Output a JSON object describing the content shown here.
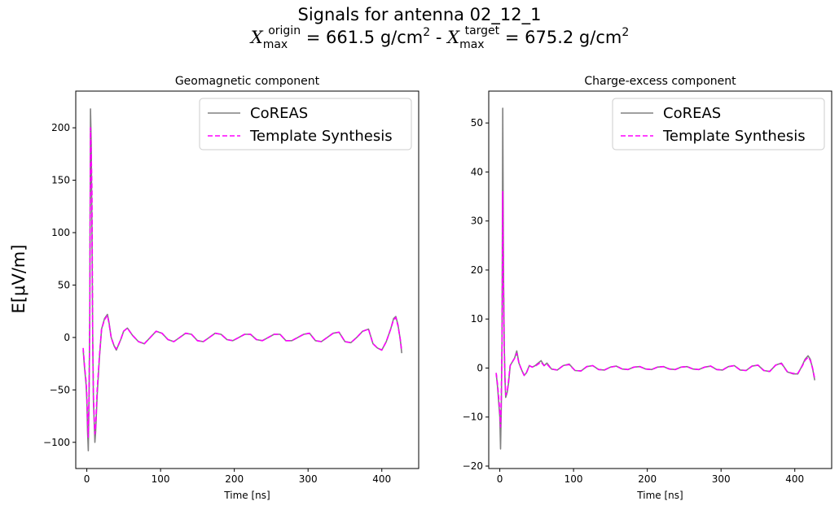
{
  "figure": {
    "title_line1": "Signals for antenna 02_12_1",
    "xmax_symbol": "X",
    "xmax_sub": "max",
    "origin_sup": "origin",
    "target_sup": "target",
    "origin_value": "=  661.5 g/cm",
    "target_value": "=  675.2 g/cm",
    "sq": "2",
    "separator": " -  ",
    "ylabel": "E[μV/m]"
  },
  "colors": {
    "coreas": "#808080",
    "template": "#ff00ff"
  },
  "chart_data": [
    {
      "type": "line",
      "title": "Geomagnetic component",
      "xlabel": "Time [ns]",
      "ylabel": "E[μV/m]",
      "xlim": [
        -15,
        450
      ],
      "ylim": [
        -125,
        235
      ],
      "xticks": [
        0,
        100,
        200,
        300,
        400
      ],
      "yticks": [
        -100,
        -50,
        0,
        50,
        100,
        150,
        200
      ],
      "legend": {
        "position": "top-right",
        "entries": [
          "CoREAS",
          "Template Synthesis"
        ]
      },
      "series": [
        {
          "name": "CoREAS",
          "style": "solid",
          "color": "#808080",
          "x": [
            -5,
            -3,
            -1,
            0,
            1,
            2,
            3,
            4,
            5,
            6,
            7,
            8,
            9,
            10,
            11,
            12,
            14,
            17,
            20,
            24,
            28,
            30,
            33,
            37,
            40,
            43,
            46,
            50,
            55,
            62,
            70,
            78,
            86,
            94,
            102,
            110,
            118,
            126,
            134,
            142,
            150,
            158,
            166,
            174,
            182,
            190,
            198,
            206,
            214,
            222,
            230,
            238,
            246,
            254,
            262,
            270,
            278,
            286,
            294,
            302,
            310,
            318,
            326,
            334,
            342,
            350,
            358,
            366,
            374,
            382,
            388,
            394,
            400,
            406,
            412,
            416,
            419,
            422,
            425,
            427
          ],
          "y": [
            -12,
            -30,
            -45,
            -60,
            -90,
            -108,
            -60,
            20,
            218,
            185,
            100,
            0,
            -60,
            -80,
            -100,
            -90,
            -55,
            -20,
            8,
            18,
            22,
            15,
            0,
            -8,
            -12,
            -7,
            -2,
            6,
            9,
            2,
            -4,
            -6,
            0,
            6,
            4,
            -2,
            -4,
            0,
            4,
            3,
            -3,
            -4,
            0,
            4,
            3,
            -2,
            -3,
            0,
            3,
            3,
            -2,
            -3,
            0,
            3,
            3,
            -3,
            -3,
            0,
            3,
            4,
            -3,
            -4,
            0,
            4,
            5,
            -4,
            -5,
            0,
            6,
            8,
            -6,
            -10,
            -12,
            -4,
            8,
            18,
            20,
            12,
            -2,
            -15
          ]
        },
        {
          "name": "Template Synthesis",
          "style": "dashed",
          "color": "#ff00ff",
          "x": [
            -5,
            -3,
            -1,
            0,
            1,
            2,
            3,
            4,
            5,
            6,
            7,
            8,
            9,
            10,
            11,
            12,
            14,
            17,
            20,
            24,
            28,
            30,
            33,
            37,
            40,
            43,
            46,
            50,
            55,
            62,
            70,
            78,
            86,
            94,
            102,
            110,
            118,
            126,
            134,
            142,
            150,
            158,
            166,
            174,
            182,
            190,
            198,
            206,
            214,
            222,
            230,
            238,
            246,
            254,
            262,
            270,
            278,
            286,
            294,
            302,
            310,
            318,
            326,
            334,
            342,
            350,
            358,
            366,
            374,
            382,
            388,
            394,
            400,
            406,
            412,
            416,
            419,
            422,
            425,
            427
          ],
          "y": [
            -10,
            -28,
            -42,
            -55,
            -80,
            -95,
            -55,
            15,
            200,
            175,
            140,
            0,
            -55,
            -75,
            -92,
            -85,
            -50,
            -18,
            8,
            17,
            21,
            14,
            0,
            -8,
            -11,
            -7,
            -2,
            6,
            9,
            2,
            -4,
            -6,
            0,
            6,
            4,
            -2,
            -4,
            0,
            4,
            3,
            -3,
            -4,
            0,
            4,
            3,
            -2,
            -3,
            0,
            3,
            3,
            -2,
            -3,
            0,
            3,
            3,
            -3,
            -3,
            0,
            3,
            4,
            -3,
            -4,
            0,
            4,
            5,
            -4,
            -5,
            0,
            6,
            8,
            -6,
            -10,
            -12,
            -4,
            8,
            17,
            19,
            11,
            -2,
            -13
          ]
        }
      ]
    },
    {
      "type": "line",
      "title": "Charge-excess component",
      "xlabel": "Time [ns]",
      "ylabel": "",
      "xlim": [
        -15,
        450
      ],
      "ylim": [
        -20.5,
        56.5
      ],
      "xticks": [
        0,
        100,
        200,
        300,
        400
      ],
      "yticks": [
        -20,
        -10,
        0,
        10,
        20,
        30,
        40,
        50
      ],
      "legend": {
        "position": "top-right",
        "entries": [
          "CoREAS",
          "Template Synthesis"
        ]
      },
      "series": [
        {
          "name": "CoREAS",
          "style": "solid",
          "color": "#808080",
          "x": [
            -5,
            -3,
            -1,
            0,
            1,
            2,
            3,
            4,
            5,
            6,
            7,
            8,
            10,
            12,
            14,
            16,
            18,
            20,
            23,
            26,
            30,
            33,
            36,
            40,
            44,
            48,
            52,
            56,
            60,
            64,
            70,
            78,
            86,
            94,
            102,
            110,
            118,
            126,
            134,
            142,
            150,
            158,
            166,
            174,
            182,
            190,
            198,
            206,
            214,
            222,
            230,
            238,
            246,
            254,
            262,
            270,
            278,
            286,
            294,
            302,
            310,
            318,
            326,
            334,
            342,
            350,
            358,
            366,
            374,
            382,
            390,
            398,
            404,
            410,
            414,
            418,
            421,
            424,
            427
          ],
          "y": [
            -1,
            -4,
            -8,
            -10,
            -16.5,
            -8,
            5,
            53,
            20,
            5,
            -2,
            -6,
            -5,
            -3,
            0.5,
            1,
            1.5,
            2,
            3.5,
            1,
            -0.5,
            -1.5,
            -1,
            0.5,
            0.2,
            0.5,
            1,
            1.5,
            0.5,
            1,
            -0.2,
            -0.4,
            0.5,
            0.8,
            -0.5,
            -0.6,
            0.3,
            0.5,
            -0.3,
            -0.4,
            0.2,
            0.4,
            -0.2,
            -0.3,
            0.2,
            0.3,
            -0.2,
            -0.3,
            0.2,
            0.3,
            -0.2,
            -0.3,
            0.2,
            0.3,
            -0.2,
            -0.3,
            0.2,
            0.4,
            -0.3,
            -0.4,
            0.3,
            0.5,
            -0.4,
            -0.5,
            0.4,
            0.6,
            -0.5,
            -0.7,
            0.6,
            1,
            -0.8,
            -1.2,
            -1.2,
            0.5,
            1.8,
            2.5,
            1.8,
            0,
            -2.5
          ]
        },
        {
          "name": "Template Synthesis",
          "style": "dashed",
          "color": "#ff00ff",
          "x": [
            -5,
            -3,
            -1,
            0,
            1,
            2,
            3,
            4,
            5,
            6,
            7,
            8,
            10,
            12,
            14,
            16,
            18,
            20,
            23,
            26,
            30,
            33,
            36,
            40,
            44,
            48,
            52,
            56,
            60,
            64,
            70,
            78,
            86,
            94,
            102,
            110,
            118,
            126,
            134,
            142,
            150,
            158,
            166,
            174,
            182,
            190,
            198,
            206,
            214,
            222,
            230,
            238,
            246,
            254,
            262,
            270,
            278,
            286,
            294,
            302,
            310,
            318,
            326,
            334,
            342,
            350,
            358,
            366,
            374,
            382,
            390,
            398,
            404,
            410,
            414,
            418,
            421,
            424,
            427
          ],
          "y": [
            -1,
            -3.5,
            -7,
            -9,
            -12,
            -6,
            5,
            36,
            18,
            4,
            -2,
            -5.5,
            -5,
            -2.5,
            0.5,
            1,
            1.5,
            2,
            3,
            1,
            -0.5,
            -1.5,
            -1,
            0.5,
            0.2,
            0.4,
            0.8,
            1.2,
            0.5,
            0.8,
            -0.2,
            -0.4,
            0.5,
            0.7,
            -0.5,
            -0.6,
            0.3,
            0.5,
            -0.3,
            -0.4,
            0.2,
            0.4,
            -0.2,
            -0.3,
            0.2,
            0.3,
            -0.2,
            -0.3,
            0.2,
            0.3,
            -0.2,
            -0.3,
            0.2,
            0.3,
            -0.2,
            -0.3,
            0.2,
            0.4,
            -0.3,
            -0.4,
            0.3,
            0.5,
            -0.4,
            -0.5,
            0.4,
            0.6,
            -0.5,
            -0.7,
            0.6,
            0.9,
            -0.8,
            -1.1,
            -1.1,
            0.4,
            1.6,
            2.2,
            1.6,
            0,
            -2.2
          ]
        }
      ]
    }
  ]
}
